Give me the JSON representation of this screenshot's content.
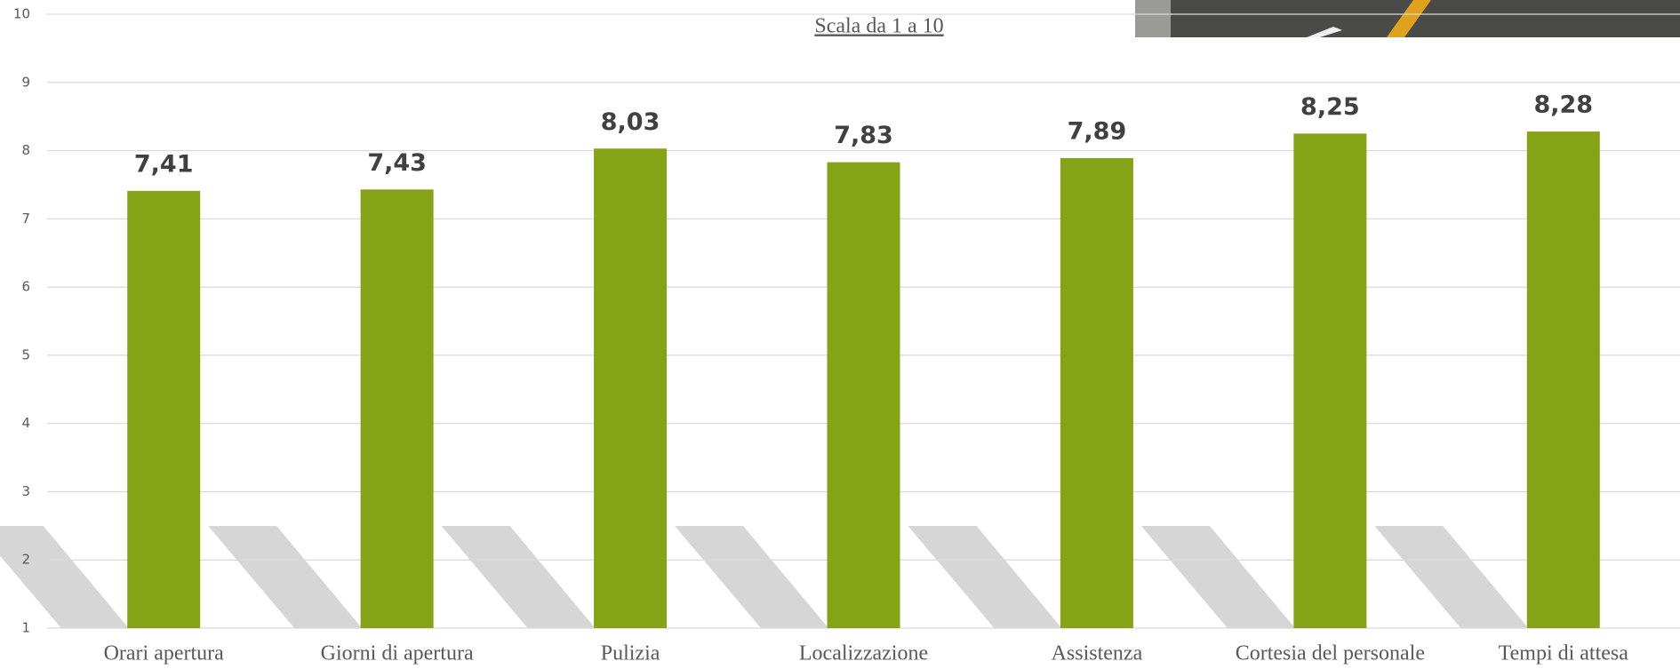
{
  "chart_data": {
    "type": "bar",
    "title": "Scala da 1 a 10",
    "categories": [
      "Orari apertura",
      "Giorni di apertura",
      "Pulizia",
      "Localizzazione",
      "Assistenza",
      "Cortesia del personale",
      "Tempi di attesa"
    ],
    "values": [
      7.41,
      7.43,
      8.03,
      7.83,
      7.89,
      8.25,
      8.28
    ],
    "value_labels": [
      "7,41",
      "7,43",
      "8,03",
      "7,83",
      "7,89",
      "8,25",
      "8,28"
    ],
    "color": "#86a317",
    "ylim": [
      1,
      10
    ],
    "yticks": [
      1,
      2,
      3,
      4,
      5,
      6,
      7,
      8,
      9,
      10
    ],
    "grid": true
  }
}
